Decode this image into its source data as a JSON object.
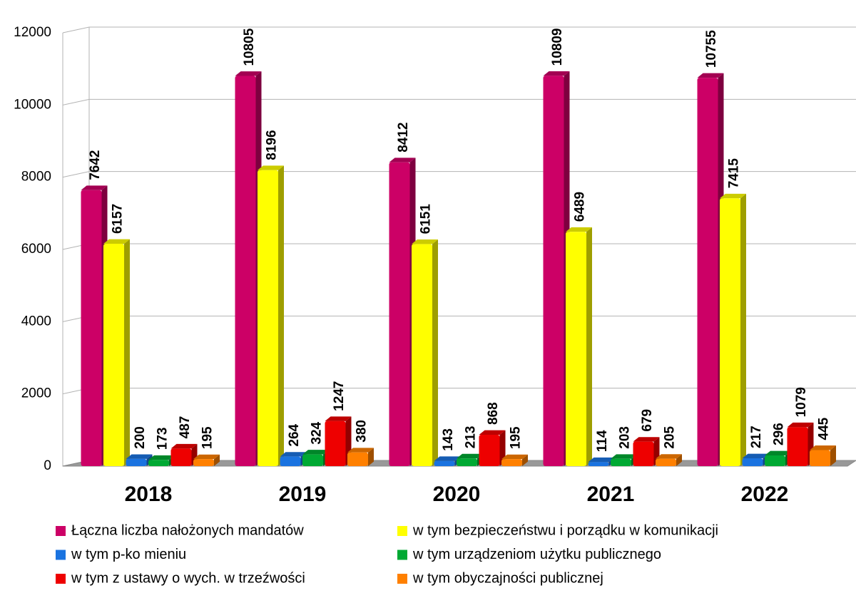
{
  "chart_data": {
    "type": "bar",
    "categories": [
      "2018",
      "2019",
      "2020",
      "2021",
      "2022"
    ],
    "series": [
      {
        "name": "Łączna liczba nałożonych mandatów",
        "color": "#cc0066",
        "values": [
          7642,
          10805,
          8412,
          10809,
          10755
        ]
      },
      {
        "name": "w tym bezpieczeństwu i porządku w komunikacji",
        "color": "#ffff00",
        "values": [
          6157,
          8196,
          6151,
          6489,
          7415
        ]
      },
      {
        "name": "w tym p-ko mieniu",
        "color": "#1a73e0",
        "values": [
          200,
          264,
          143,
          114,
          217
        ]
      },
      {
        "name": "w tym urządzeniom użytku publicznego",
        "color": "#00a933",
        "values": [
          173,
          324,
          213,
          203,
          296
        ]
      },
      {
        "name": "w tym z ustawy o wych. w trzeźwości",
        "color": "#ee0000",
        "values": [
          487,
          1247,
          868,
          679,
          1079
        ]
      },
      {
        "name": "w tym obyczajności publicznej",
        "color": "#ff8000",
        "values": [
          195,
          380,
          195,
          205,
          445
        ]
      }
    ],
    "ylim": [
      0,
      12000
    ],
    "yticks": [
      0,
      2000,
      4000,
      6000,
      8000,
      10000,
      12000
    ],
    "grid": true
  }
}
